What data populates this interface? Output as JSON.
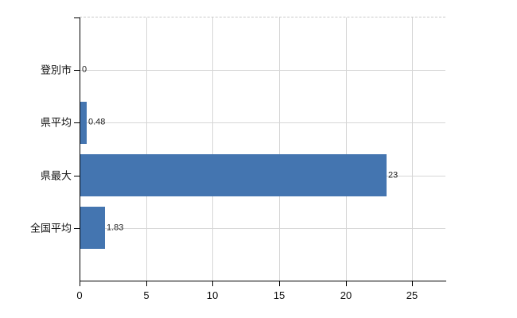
{
  "chart_data": {
    "type": "bar",
    "orientation": "horizontal",
    "title": "",
    "xlabel": "",
    "ylabel": "",
    "categories": [
      "登別市",
      "県平均",
      "県最大",
      "全国平均"
    ],
    "values": [
      0,
      0.48,
      23,
      1.83
    ],
    "value_labels": [
      "0",
      "0.48",
      "23",
      "1.83"
    ],
    "xlim": [
      0,
      27.5
    ],
    "xticks": [
      0,
      5,
      10,
      15,
      20,
      25
    ],
    "xtick_labels": [
      "0",
      "5",
      "10",
      "15",
      "20",
      "25"
    ],
    "grid": "on",
    "legend": "none",
    "colors": {
      "bar": "#4475b0",
      "grid": "#d6d6d6",
      "axis": "#000000",
      "plot_border_dashed": "#c9c9c9",
      "text": "#111111",
      "background": "#ffffff"
    }
  }
}
